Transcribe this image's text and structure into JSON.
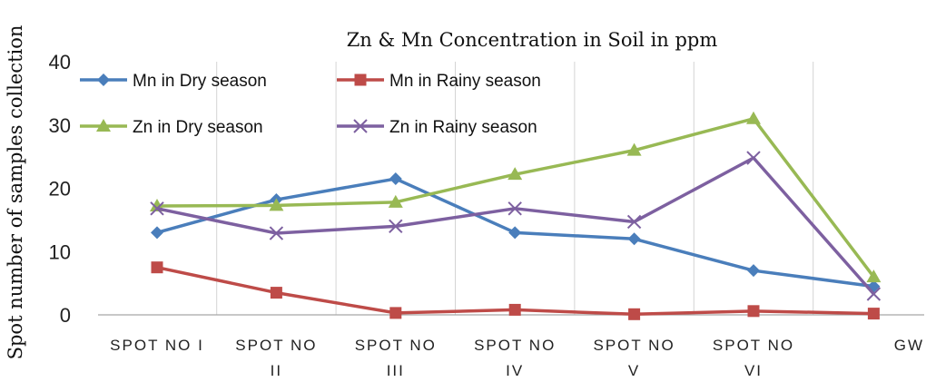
{
  "chart_data": {
    "type": "line",
    "title": "Zn & Mn Concentration in Soil in ppm",
    "ylabel": "Spot number of samples collection",
    "xlabel": "",
    "categories": [
      [
        "SPOT NO I"
      ],
      [
        "SPOT NO",
        "II"
      ],
      [
        "SPOT NO",
        "III"
      ],
      [
        "SPOT NO",
        "IV"
      ],
      [
        "SPOT NO",
        "V"
      ],
      [
        "SPOT NO",
        "VI"
      ],
      [
        "GW"
      ]
    ],
    "ylim": [
      0,
      40
    ],
    "yticks": [
      "0",
      "10",
      "20",
      "30",
      "40"
    ],
    "grid": "vertical",
    "legend_position": "top-left",
    "series": [
      {
        "name": "Mn in Dry season",
        "color": "#4a7ebb",
        "marker": "diamond",
        "values": [
          13,
          18.2,
          21.5,
          13,
          12,
          7,
          4.5
        ]
      },
      {
        "name": "Mn in Rainy season",
        "color": "#be4b48",
        "marker": "square",
        "values": [
          7.5,
          3.5,
          0.3,
          0.8,
          0.1,
          0.6,
          0.2
        ]
      },
      {
        "name": "Zn in Dry season",
        "color": "#98b954",
        "marker": "triangle",
        "values": [
          17.2,
          17.3,
          17.8,
          22.2,
          26,
          31,
          6
        ]
      },
      {
        "name": "Zn in Rainy season",
        "color": "#7d60a0",
        "marker": "x",
        "values": [
          16.8,
          12.9,
          14,
          16.8,
          14.7,
          24.8,
          3.3
        ]
      }
    ]
  }
}
